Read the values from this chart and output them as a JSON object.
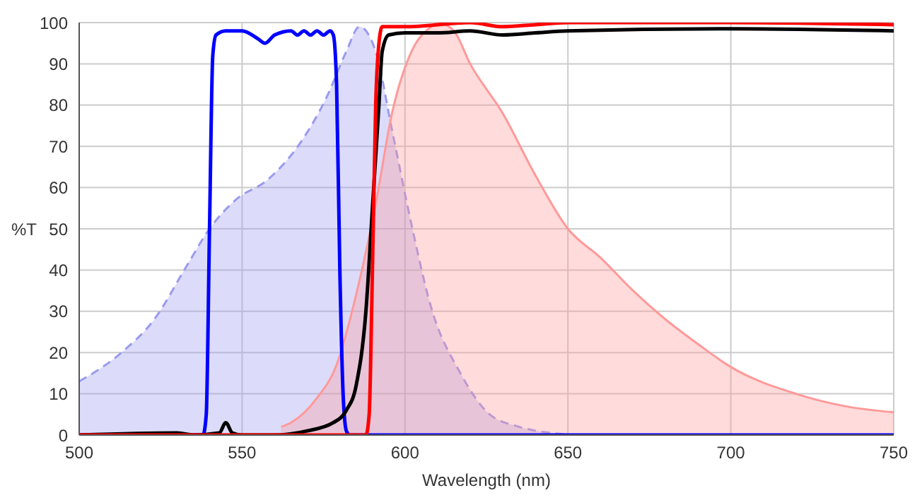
{
  "chart_data": {
    "type": "line",
    "xlabel": "Wavelength (nm)",
    "ylabel": "%T",
    "xlim": [
      500,
      750
    ],
    "ylim": [
      0,
      100
    ],
    "xticks": [
      500,
      550,
      600,
      650,
      700,
      750
    ],
    "yticks": [
      0,
      10,
      20,
      30,
      40,
      50,
      60,
      70,
      80,
      90,
      100
    ],
    "grid": true,
    "series": [
      {
        "type": "area",
        "color": "#9a9af0",
        "line_style": "dashed",
        "x": [
          500,
          513,
          523,
          533,
          540,
          548,
          558,
          568,
          576,
          582,
          586,
          591,
          596,
          602,
          608,
          617,
          626,
          635,
          645,
          655,
          750
        ],
        "values": [
          13,
          20,
          28,
          41,
          50,
          57,
          62,
          71,
          82,
          93,
          99,
          93,
          74,
          51,
          31,
          15,
          5,
          2,
          0.5,
          0,
          0
        ]
      },
      {
        "type": "area",
        "color": "#ff9999",
        "line_style": "solid",
        "x": [
          562,
          565,
          573,
          579,
          585,
          591,
          596,
          602,
          608,
          610,
          615,
          620,
          630,
          640,
          650,
          660,
          670,
          680,
          690,
          700,
          720,
          735,
          750
        ],
        "values": [
          2,
          3,
          9,
          17,
          34,
          56,
          78,
          93,
          99,
          100,
          98,
          90,
          78,
          63,
          50,
          43,
          35,
          28,
          22,
          16.5,
          10,
          7,
          5.5
        ]
      },
      {
        "color": "#0000ff",
        "line_style": "solid",
        "x": [
          500,
          538,
          539,
          540,
          541,
          542,
          545,
          550,
          555,
          557,
          560,
          565,
          567,
          569,
          571,
          573,
          575,
          577,
          578,
          579,
          580,
          581,
          582,
          583,
          750
        ],
        "values": [
          0,
          0,
          5,
          50,
          92,
          97,
          98,
          98,
          96,
          95,
          97,
          98,
          97,
          98,
          97,
          98,
          97,
          98,
          97,
          85,
          40,
          10,
          1,
          0,
          0
        ]
      },
      {
        "color": "#000000",
        "line_style": "solid",
        "x": [
          500,
          530,
          535,
          543,
          545,
          547,
          550,
          560,
          570,
          578,
          582,
          585,
          588,
          590,
          592,
          593,
          595,
          600,
          610,
          620,
          630,
          640,
          650,
          700,
          750
        ],
        "values": [
          0,
          0.5,
          0,
          0.5,
          3,
          0.5,
          0,
          0,
          1,
          3,
          6,
          12,
          30,
          55,
          80,
          93,
          97,
          97.5,
          97.5,
          98,
          97,
          97.5,
          98,
          98.5,
          98
        ]
      },
      {
        "color": "#ff0000",
        "line_style": "solid",
        "x": [
          500,
          588,
          589,
          590,
          591,
          592,
          593,
          600,
          620,
          630,
          640,
          650,
          700,
          750
        ],
        "values": [
          0,
          0,
          5,
          40,
          80,
          95,
          99,
          99,
          100,
          99,
          99.5,
          100,
          100,
          99.5
        ]
      }
    ]
  }
}
